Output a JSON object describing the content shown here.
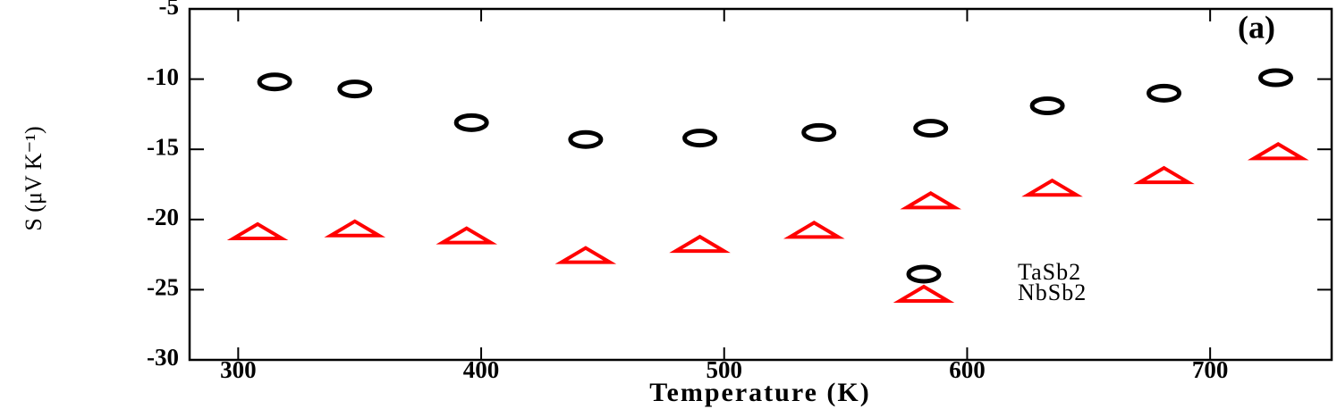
{
  "chart_data": {
    "type": "scatter",
    "xlabel": "Temperature (K)",
    "ylabel": "S (μV K⁻¹)",
    "annotation": "(a)",
    "xlim": [
      280,
      750
    ],
    "xticks": [
      300,
      400,
      500,
      600,
      700
    ],
    "ylim": [
      -30,
      -5
    ],
    "yticks": [
      -30,
      -25,
      -20,
      -15,
      -10,
      -5
    ],
    "series": [
      {
        "name": "TaSb2",
        "color": "#000000",
        "marker": "circle",
        "x": [
          315,
          348,
          396,
          443,
          490,
          539,
          585,
          633,
          681,
          727
        ],
        "values": [
          -10.2,
          -10.7,
          -13.1,
          -14.3,
          -14.2,
          -13.8,
          -13.5,
          -11.9,
          -11.0,
          -9.9
        ]
      },
      {
        "name": "NbSb2",
        "color": "#ff0000",
        "marker": "triangle",
        "x": [
          308,
          348,
          394,
          443,
          490,
          537,
          585,
          635,
          681,
          728
        ],
        "values": [
          -20.9,
          -20.7,
          -21.2,
          -22.6,
          -21.8,
          -20.8,
          -18.7,
          -17.8,
          -16.9,
          -15.2
        ]
      }
    ]
  }
}
